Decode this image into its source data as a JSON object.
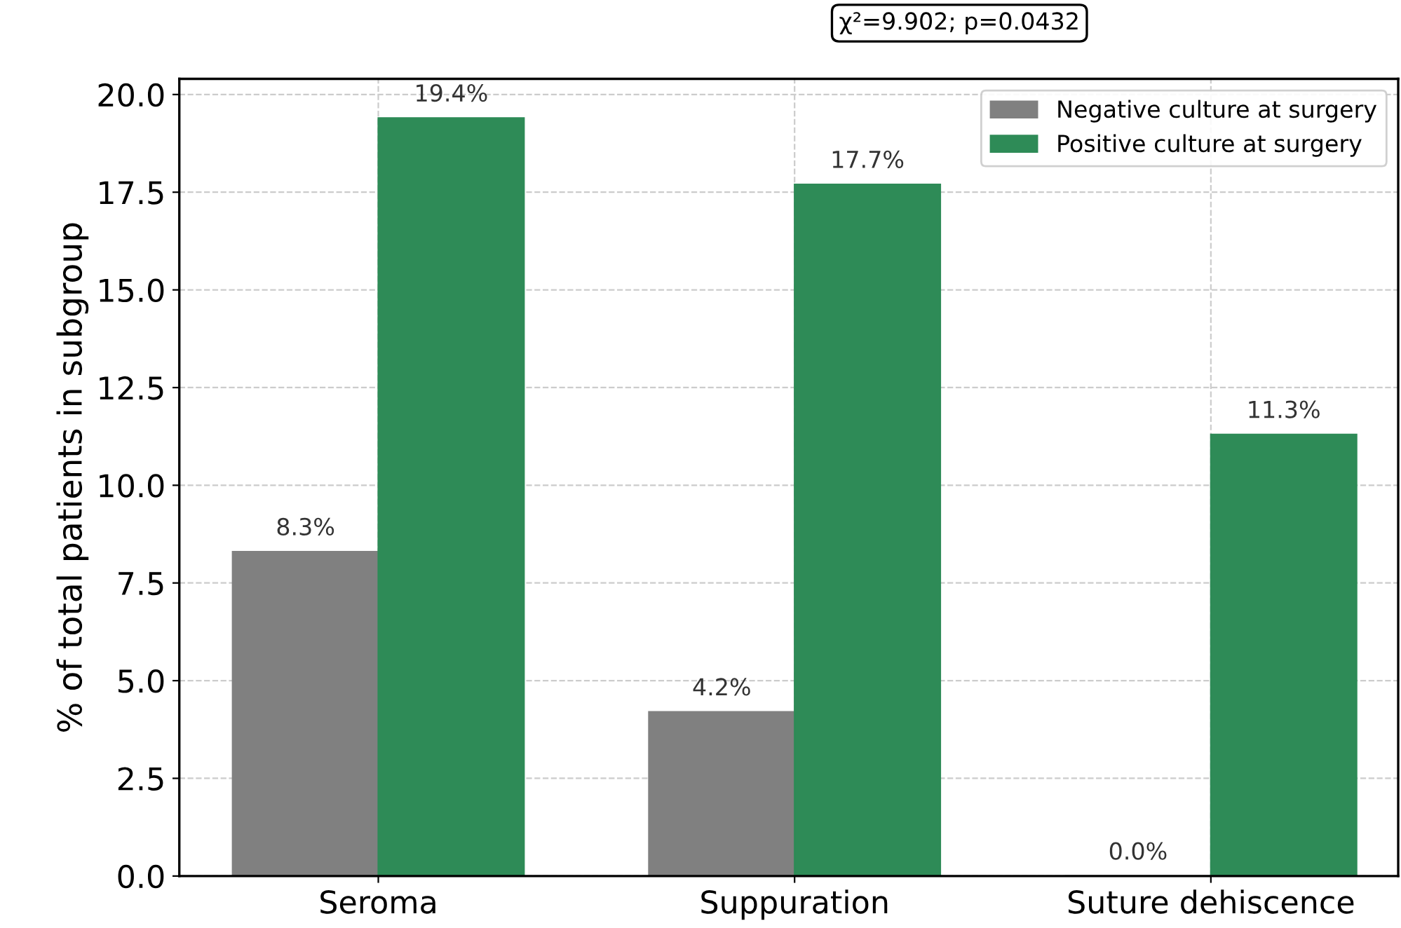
{
  "chart_data": {
    "type": "bar",
    "ylabel": "% of total patients in subgroup",
    "categories": [
      "Seroma",
      "Suppuration",
      "Suture dehiscence"
    ],
    "series": [
      {
        "name": "Negative culture at surgery",
        "color": "#808080",
        "values": [
          8.3,
          4.2,
          0.0
        ],
        "value_labels": [
          "8.3%",
          "4.2%",
          "0.0%"
        ]
      },
      {
        "name": "Positive culture at surgery",
        "color": "#2e8b57",
        "values": [
          19.4,
          17.7,
          11.3
        ],
        "value_labels": [
          "19.4%",
          "17.7%",
          "11.3%"
        ]
      }
    ],
    "ylim": [
      0,
      20.4
    ],
    "yticks": [
      {
        "value": 0,
        "label": "0.0"
      },
      {
        "value": 2.5,
        "label": "2.5"
      },
      {
        "value": 5,
        "label": "5.0"
      },
      {
        "value": 7.5,
        "label": "7.5"
      },
      {
        "value": 10,
        "label": "10.0"
      },
      {
        "value": 12.5,
        "label": "12.5"
      },
      {
        "value": 15,
        "label": "15.0"
      },
      {
        "value": 17.5,
        "label": "17.5"
      },
      {
        "value": 20,
        "label": "20.0"
      }
    ],
    "grid": true,
    "legend": "top right",
    "annotations": [
      "χ²=9.902; p=0.0432"
    ]
  }
}
